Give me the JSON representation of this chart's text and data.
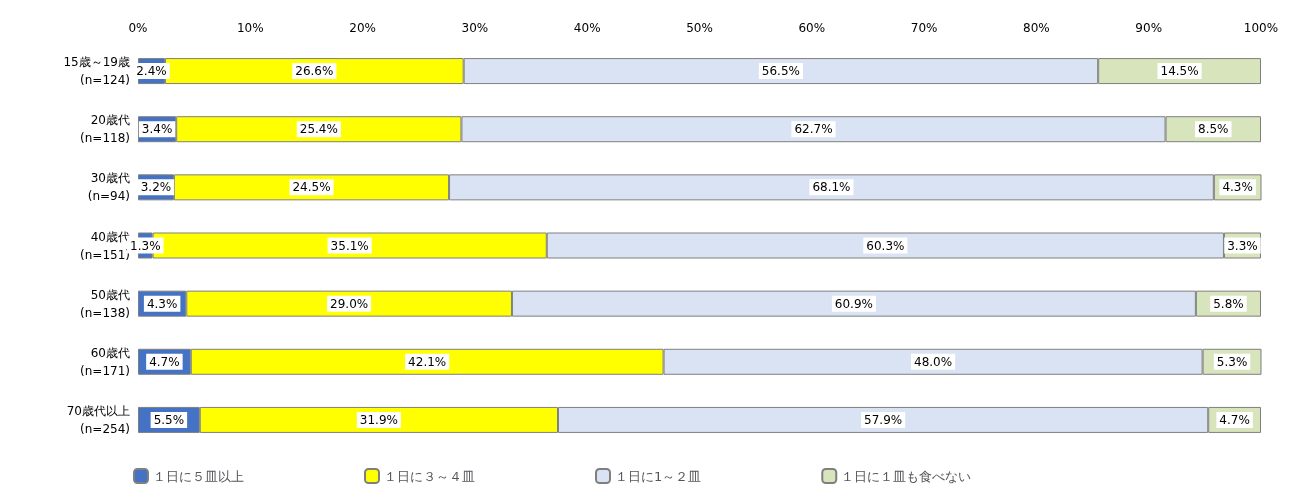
{
  "chart_data": {
    "type": "bar",
    "orientation": "horizontal",
    "stacked": true,
    "categories": [
      "15歳～19歳\n(n=124)",
      "20歳代\n(n=118)",
      "30歳代\n(n=94)",
      "40歳代\n(n=151)",
      "50歳代\n(n=138)",
      "60歳代\n(n=171)",
      "70歳代以上\n(n=254)"
    ],
    "series": [
      {
        "name": "１日に５皿以上",
        "color": "#4472c4",
        "values": [
          2.4,
          3.4,
          3.2,
          1.3,
          4.3,
          4.7,
          5.5
        ],
        "value_labels": [
          "2.4%",
          "3.4%",
          "3.2%",
          "1.3%",
          "4.3%",
          "4.7%",
          "5.5%"
        ]
      },
      {
        "name": "１日に３～４皿",
        "color": "#ffff00",
        "values": [
          26.6,
          25.4,
          24.5,
          35.1,
          29.0,
          42.1,
          31.9
        ],
        "value_labels": [
          "26.6%",
          "25.4%",
          "24.5%",
          "35.1%",
          "29.0%",
          "42.1%",
          "31.9%"
        ]
      },
      {
        "name": "１日に1～２皿",
        "color": "#dae3f3",
        "values": [
          56.5,
          62.7,
          68.1,
          60.3,
          60.9,
          48.0,
          57.9
        ],
        "value_labels": [
          "56.5%",
          "62.7%",
          "68.1%",
          "60.3%",
          "60.9%",
          "48.0%",
          "57.9%"
        ]
      },
      {
        "name": "１日に１皿も食べない",
        "color": "#d8e4bc",
        "values": [
          14.5,
          8.5,
          4.3,
          3.3,
          5.8,
          5.3,
          4.7
        ],
        "value_labels": [
          "14.5%",
          "8.5%",
          "4.3%",
          "3.3%",
          "5.8%",
          "5.3%",
          "4.7%"
        ]
      }
    ],
    "xlim": [
      0,
      100
    ],
    "xticks": [
      {
        "value": 0,
        "label": "0%"
      },
      {
        "value": 10,
        "label": "10%"
      },
      {
        "value": 20,
        "label": "20%"
      },
      {
        "value": 30,
        "label": "30%"
      },
      {
        "value": 40,
        "label": "40%"
      },
      {
        "value": 50,
        "label": "50%"
      },
      {
        "value": 60,
        "label": "60%"
      },
      {
        "value": 70,
        "label": "70%"
      },
      {
        "value": 80,
        "label": "80%"
      },
      {
        "value": 90,
        "label": "90%"
      },
      {
        "value": 100,
        "label": "100%"
      }
    ],
    "legend": "bottom",
    "grid": false
  }
}
